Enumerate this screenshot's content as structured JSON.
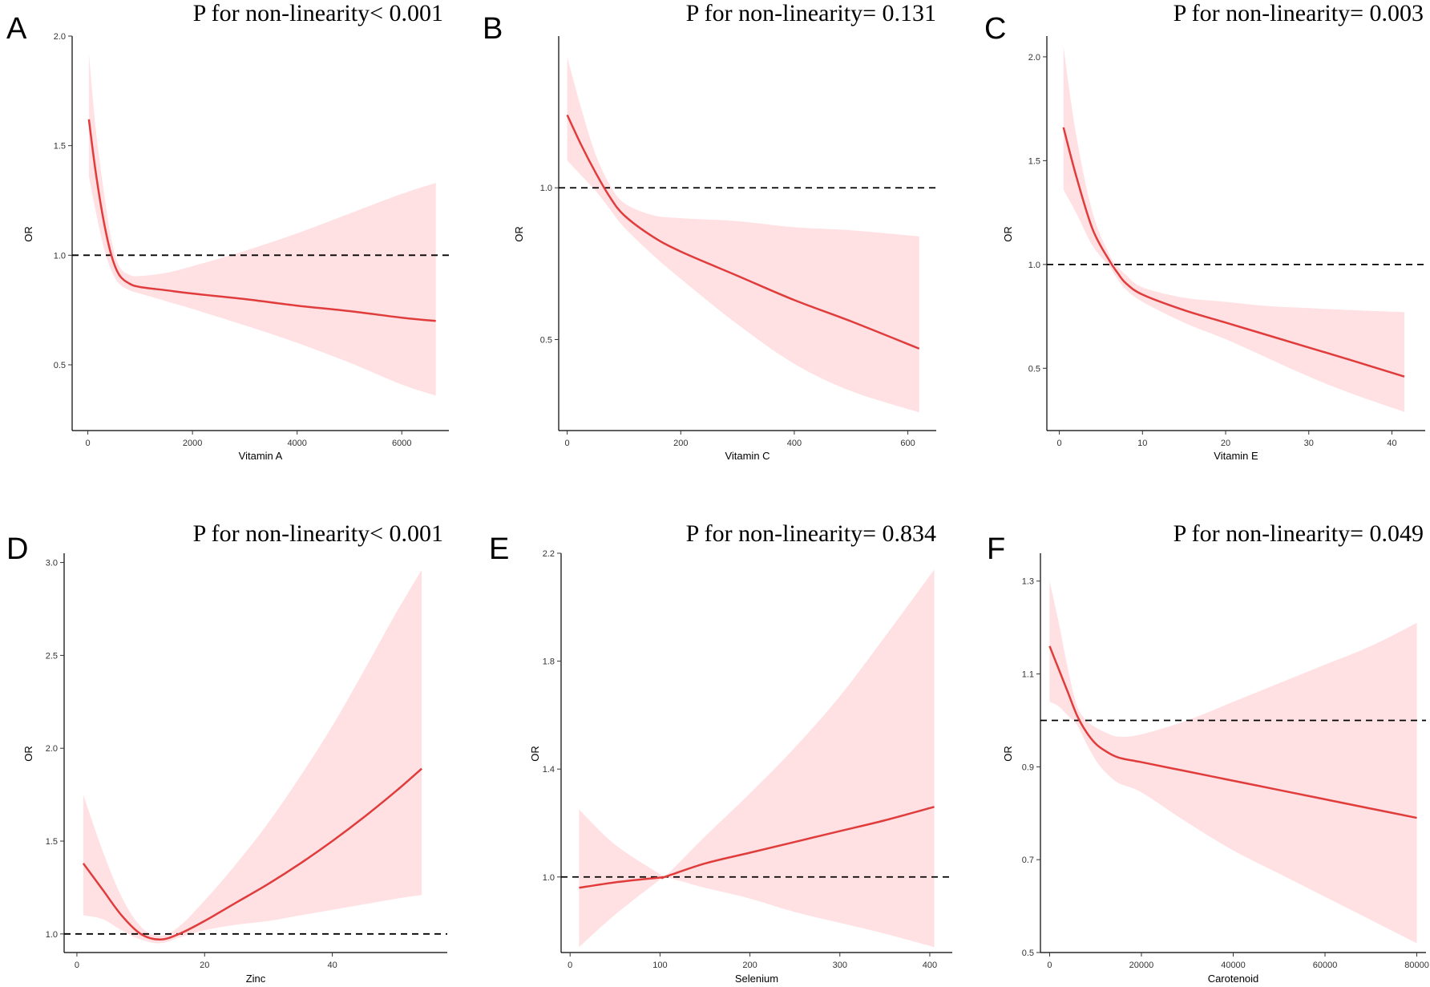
{
  "chart_data": [
    {
      "panel": "A",
      "type": "line",
      "p_text": "P for non-linearity< 0.001",
      "xlabel": "Vitamin A",
      "ylabel": "OR",
      "xlim": [
        -300,
        6900
      ],
      "ylim": [
        0.2,
        2.0
      ],
      "xticks": [
        0,
        2000,
        4000,
        6000
      ],
      "yticks": [
        0.5,
        1.0,
        1.5,
        2.0
      ],
      "xtick_labels": [
        "0",
        "2000",
        "4000",
        "6000"
      ],
      "ytick_labels": [
        "0.5",
        "1.0",
        "1.5",
        "2.0"
      ],
      "reference": 1.0,
      "x": [
        20,
        150,
        300,
        450,
        600,
        800,
        1000,
        1500,
        2000,
        3000,
        4000,
        5000,
        6000,
        6650
      ],
      "or": [
        1.62,
        1.38,
        1.16,
        1.0,
        0.91,
        0.87,
        0.855,
        0.84,
        0.825,
        0.8,
        0.77,
        0.745,
        0.715,
        0.7
      ],
      "lower": [
        1.36,
        1.2,
        1.04,
        0.93,
        0.87,
        0.84,
        0.825,
        0.79,
        0.755,
        0.68,
        0.6,
        0.51,
        0.41,
        0.36
      ],
      "upper": [
        1.92,
        1.58,
        1.3,
        1.07,
        0.95,
        0.91,
        0.905,
        0.92,
        0.95,
        1.02,
        1.1,
        1.19,
        1.28,
        1.33
      ]
    },
    {
      "panel": "B",
      "type": "line",
      "p_text": "P for non-linearity= 0.131",
      "xlabel": "Vitamin C",
      "ylabel": "OR",
      "xlim": [
        -15,
        650
      ],
      "ylim": [
        0.2,
        1.5
      ],
      "xticks": [
        0,
        200,
        400,
        600
      ],
      "yticks": [
        0.5,
        1.0
      ],
      "xtick_labels": [
        "0",
        "200",
        "400",
        "600"
      ],
      "ytick_labels": [
        "0.5",
        "1.0"
      ],
      "reference": 1.0,
      "x": [
        0,
        25,
        50,
        75,
        100,
        150,
        200,
        300,
        400,
        500,
        620
      ],
      "or": [
        1.24,
        1.14,
        1.05,
        0.97,
        0.91,
        0.84,
        0.79,
        0.71,
        0.63,
        0.56,
        0.47
      ],
      "lower": [
        1.09,
        1.04,
        0.99,
        0.93,
        0.87,
        0.78,
        0.7,
        0.55,
        0.42,
        0.33,
        0.26
      ],
      "upper": [
        1.43,
        1.26,
        1.11,
        1.01,
        0.95,
        0.91,
        0.9,
        0.89,
        0.87,
        0.86,
        0.84
      ]
    },
    {
      "panel": "C",
      "type": "line",
      "p_text": "P for non-linearity= 0.003",
      "xlabel": "Vitamin E",
      "ylabel": "OR",
      "xlim": [
        -1.5,
        44
      ],
      "ylim": [
        0.2,
        2.1
      ],
      "xticks": [
        0,
        10,
        20,
        30,
        40
      ],
      "yticks": [
        0.5,
        1.0,
        1.5,
        2.0
      ],
      "xtick_labels": [
        "0",
        "10",
        "20",
        "30",
        "40"
      ],
      "ytick_labels": [
        "0.5",
        "1.0",
        "1.5",
        "2.0"
      ],
      "reference": 1.0,
      "x": [
        0.5,
        2,
        4,
        6,
        7,
        8,
        10,
        15,
        20,
        25,
        30,
        35,
        41.5
      ],
      "or": [
        1.66,
        1.43,
        1.17,
        1.02,
        0.96,
        0.91,
        0.855,
        0.78,
        0.72,
        0.66,
        0.6,
        0.54,
        0.46
      ],
      "lower": [
        1.36,
        1.25,
        1.09,
        0.99,
        0.93,
        0.88,
        0.82,
        0.72,
        0.64,
        0.55,
        0.46,
        0.38,
        0.29
      ],
      "upper": [
        2.05,
        1.63,
        1.25,
        1.05,
        0.99,
        0.95,
        0.89,
        0.84,
        0.82,
        0.8,
        0.79,
        0.78,
        0.77
      ]
    },
    {
      "panel": "D",
      "type": "line",
      "p_text": "P for non-linearity< 0.001",
      "xlabel": "Zinc",
      "ylabel": "OR",
      "xlim": [
        -2,
        58
      ],
      "ylim": [
        0.9,
        3.05
      ],
      "xticks": [
        0,
        20,
        40
      ],
      "yticks": [
        1.0,
        1.5,
        2.0,
        2.5,
        3.0
      ],
      "xtick_labels": [
        "0",
        "20",
        "40"
      ],
      "ytick_labels": [
        "1.0",
        "1.5",
        "2.0",
        "2.5",
        "3.0"
      ],
      "reference": 1.0,
      "x": [
        1,
        4,
        7,
        10,
        13,
        16,
        20,
        25,
        30,
        35,
        40,
        45,
        50,
        54
      ],
      "or": [
        1.38,
        1.24,
        1.1,
        1.0,
        0.97,
        1.0,
        1.07,
        1.17,
        1.27,
        1.38,
        1.5,
        1.63,
        1.77,
        1.89
      ],
      "lower": [
        1.1,
        1.08,
        1.02,
        0.97,
        0.95,
        0.98,
        1.02,
        1.05,
        1.07,
        1.1,
        1.13,
        1.16,
        1.19,
        1.21
      ],
      "upper": [
        1.75,
        1.45,
        1.2,
        1.04,
        0.99,
        1.04,
        1.18,
        1.38,
        1.6,
        1.85,
        2.12,
        2.42,
        2.73,
        2.96
      ]
    },
    {
      "panel": "E",
      "type": "line",
      "p_text": "P for non-linearity= 0.834",
      "xlabel": "Selenium",
      "ylabel": "OR",
      "xlim": [
        -10,
        425
      ],
      "ylim": [
        0.72,
        2.2
      ],
      "xticks": [
        0,
        100,
        200,
        300,
        400
      ],
      "yticks": [
        1.0,
        1.4,
        1.8,
        2.2
      ],
      "xtick_labels": [
        "0",
        "100",
        "200",
        "300",
        "400"
      ],
      "ytick_labels": [
        "1.0",
        "1.4",
        "1.8",
        "2.2"
      ],
      "reference": 1.0,
      "x": [
        10,
        50,
        100,
        105,
        150,
        200,
        250,
        300,
        350,
        405
      ],
      "or": [
        0.96,
        0.98,
        0.998,
        1.0,
        1.05,
        1.09,
        1.13,
        1.17,
        1.21,
        1.26
      ],
      "lower": [
        0.74,
        0.86,
        0.99,
        1.0,
        0.96,
        0.92,
        0.87,
        0.83,
        0.79,
        0.74
      ],
      "upper": [
        1.25,
        1.12,
        1.01,
        1.0,
        1.15,
        1.31,
        1.48,
        1.67,
        1.89,
        2.14
      ]
    },
    {
      "panel": "F",
      "type": "line",
      "p_text": "P for non-linearity= 0.049",
      "xlabel": "Carotenoid",
      "ylabel": "OR",
      "xlim": [
        -2000,
        82000
      ],
      "ylim": [
        0.5,
        1.36
      ],
      "xticks": [
        0,
        20000,
        40000,
        60000,
        80000
      ],
      "yticks": [
        0.5,
        0.7,
        0.9,
        1.1,
        1.3
      ],
      "xtick_labels": [
        "0",
        "20000",
        "40000",
        "60000",
        "80000"
      ],
      "ytick_labels": [
        "0.5",
        "0.7",
        "0.9",
        "1.1",
        "1.3"
      ],
      "reference": 1.0,
      "x": [
        0,
        2000,
        4000,
        6000,
        8000,
        10000,
        12000,
        15000,
        20000,
        30000,
        40000,
        50000,
        60000,
        70000,
        80000
      ],
      "or": [
        1.16,
        1.11,
        1.06,
        1.01,
        0.975,
        0.95,
        0.935,
        0.92,
        0.91,
        0.89,
        0.87,
        0.85,
        0.83,
        0.81,
        0.79
      ],
      "lower": [
        1.04,
        1.03,
        1.01,
        0.99,
        0.95,
        0.915,
        0.89,
        0.865,
        0.845,
        0.78,
        0.72,
        0.67,
        0.62,
        0.57,
        0.52
      ],
      "upper": [
        1.3,
        1.21,
        1.11,
        1.03,
        1.0,
        0.985,
        0.975,
        0.965,
        0.97,
        1.0,
        1.04,
        1.08,
        1.12,
        1.16,
        1.21
      ]
    }
  ]
}
